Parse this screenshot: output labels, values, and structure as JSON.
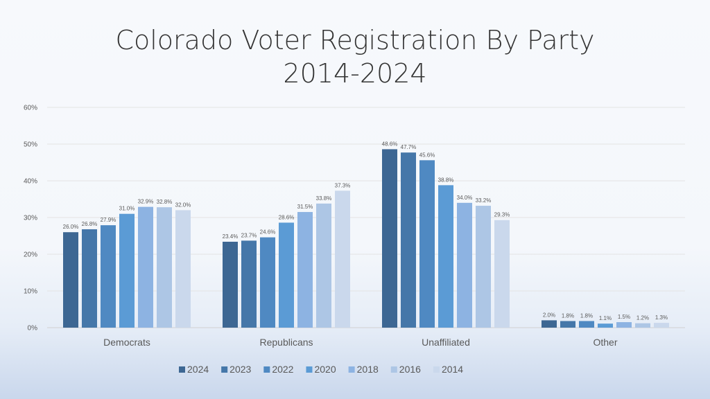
{
  "chart_data": {
    "type": "bar",
    "title_lines": [
      "Colorado Voter Registration By Party",
      "2014-2024"
    ],
    "categories": [
      "Democrats",
      "Republicans",
      "Unaffiliated",
      "Other"
    ],
    "ylim": [
      0,
      60
    ],
    "yticks": [
      "0%",
      "10%",
      "20%",
      "30%",
      "40%",
      "50%",
      "60%"
    ],
    "grid": true,
    "legend_position": "bottom",
    "series": [
      {
        "name": "2024",
        "color": "#3d6793",
        "values": [
          26.0,
          23.4,
          48.6,
          2.0
        ],
        "labels": [
          "26.0%",
          "23.4%",
          "48.6%",
          "2.0%"
        ]
      },
      {
        "name": "2023",
        "color": "#4577a9",
        "values": [
          26.8,
          23.7,
          47.7,
          1.8
        ],
        "labels": [
          "26.8%",
          "23.7%",
          "47.7%",
          "1.8%"
        ]
      },
      {
        "name": "2022",
        "color": "#4f89c2",
        "values": [
          27.9,
          24.6,
          45.6,
          1.8
        ],
        "labels": [
          "27.9%",
          "24.6%",
          "45.6%",
          "1.8%"
        ]
      },
      {
        "name": "2020",
        "color": "#5b9bd5",
        "values": [
          31.0,
          28.6,
          38.8,
          1.1
        ],
        "labels": [
          "31.0%",
          "28.6%",
          "38.8%",
          "1.1%"
        ]
      },
      {
        "name": "2018",
        "color": "#8db3e2",
        "values": [
          32.9,
          31.5,
          34.0,
          1.5
        ],
        "labels": [
          "32.9%",
          "31.5%",
          "34.0%",
          "1.5%"
        ]
      },
      {
        "name": "2016",
        "color": "#adc6e5",
        "values": [
          32.8,
          33.8,
          33.2,
          1.2
        ],
        "labels": [
          "32.8%",
          "33.8%",
          "33.2%",
          "1.2%"
        ]
      },
      {
        "name": "2014",
        "color": "#cad8ec",
        "values": [
          32.0,
          37.3,
          29.3,
          1.3
        ],
        "labels": [
          "32.0%",
          "37.3%",
          "29.3%",
          "1.3%"
        ]
      }
    ]
  }
}
